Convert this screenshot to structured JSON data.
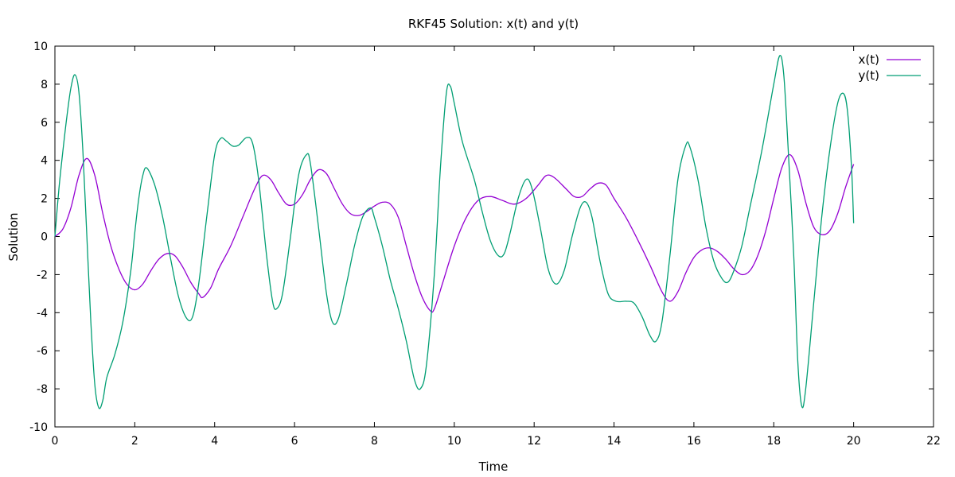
{
  "chart_data": {
    "type": "line",
    "title": "RKF45 Solution: x(t) and y(t)",
    "xlabel": "Time",
    "ylabel": "Solution",
    "xlim": [
      0,
      22
    ],
    "ylim": [
      -10,
      10
    ],
    "xticks": [
      0,
      2,
      4,
      6,
      8,
      10,
      12,
      14,
      16,
      18,
      20,
      22
    ],
    "yticks": [
      -10,
      -8,
      -6,
      -4,
      -2,
      0,
      2,
      4,
      6,
      8,
      10
    ],
    "grid": false,
    "legend_position": "top-right",
    "series": [
      {
        "name": "x(t)",
        "color": "#9400d3",
        "points": [
          [
            0.0,
            0.0
          ],
          [
            0.2,
            0.4
          ],
          [
            0.4,
            1.5
          ],
          [
            0.6,
            3.2
          ],
          [
            0.8,
            4.1
          ],
          [
            1.0,
            3.2
          ],
          [
            1.2,
            1.2
          ],
          [
            1.4,
            -0.5
          ],
          [
            1.6,
            -1.7
          ],
          [
            1.8,
            -2.5
          ],
          [
            2.0,
            -2.8
          ],
          [
            2.2,
            -2.5
          ],
          [
            2.4,
            -1.8
          ],
          [
            2.6,
            -1.2
          ],
          [
            2.8,
            -0.9
          ],
          [
            3.0,
            -1.0
          ],
          [
            3.2,
            -1.6
          ],
          [
            3.4,
            -2.4
          ],
          [
            3.6,
            -3.0
          ],
          [
            3.7,
            -3.2
          ],
          [
            3.9,
            -2.7
          ],
          [
            4.1,
            -1.7
          ],
          [
            4.4,
            -0.5
          ],
          [
            4.7,
            1.0
          ],
          [
            5.0,
            2.5
          ],
          [
            5.2,
            3.2
          ],
          [
            5.4,
            3.0
          ],
          [
            5.6,
            2.3
          ],
          [
            5.8,
            1.7
          ],
          [
            6.0,
            1.7
          ],
          [
            6.2,
            2.2
          ],
          [
            6.4,
            3.0
          ],
          [
            6.6,
            3.5
          ],
          [
            6.8,
            3.3
          ],
          [
            7.0,
            2.5
          ],
          [
            7.2,
            1.7
          ],
          [
            7.4,
            1.2
          ],
          [
            7.6,
            1.1
          ],
          [
            7.8,
            1.3
          ],
          [
            8.0,
            1.6
          ],
          [
            8.2,
            1.8
          ],
          [
            8.4,
            1.7
          ],
          [
            8.6,
            1.0
          ],
          [
            8.8,
            -0.5
          ],
          [
            9.0,
            -2.0
          ],
          [
            9.2,
            -3.2
          ],
          [
            9.4,
            -3.9
          ],
          [
            9.5,
            -3.8
          ],
          [
            9.7,
            -2.5
          ],
          [
            10.0,
            -0.5
          ],
          [
            10.3,
            1.0
          ],
          [
            10.6,
            1.9
          ],
          [
            10.9,
            2.1
          ],
          [
            11.2,
            1.9
          ],
          [
            11.5,
            1.7
          ],
          [
            11.8,
            2.0
          ],
          [
            12.1,
            2.7
          ],
          [
            12.3,
            3.2
          ],
          [
            12.5,
            3.1
          ],
          [
            12.8,
            2.5
          ],
          [
            13.0,
            2.1
          ],
          [
            13.2,
            2.1
          ],
          [
            13.4,
            2.5
          ],
          [
            13.6,
            2.8
          ],
          [
            13.8,
            2.7
          ],
          [
            14.0,
            2.0
          ],
          [
            14.3,
            1.0
          ],
          [
            14.6,
            -0.2
          ],
          [
            14.9,
            -1.5
          ],
          [
            15.2,
            -2.9
          ],
          [
            15.4,
            -3.4
          ],
          [
            15.6,
            -2.9
          ],
          [
            15.8,
            -1.9
          ],
          [
            16.0,
            -1.1
          ],
          [
            16.2,
            -0.7
          ],
          [
            16.4,
            -0.6
          ],
          [
            16.6,
            -0.8
          ],
          [
            16.8,
            -1.2
          ],
          [
            17.0,
            -1.7
          ],
          [
            17.2,
            -2.0
          ],
          [
            17.4,
            -1.8
          ],
          [
            17.6,
            -1.0
          ],
          [
            17.8,
            0.3
          ],
          [
            18.0,
            2.0
          ],
          [
            18.2,
            3.6
          ],
          [
            18.4,
            4.3
          ],
          [
            18.6,
            3.5
          ],
          [
            18.8,
            1.8
          ],
          [
            19.0,
            0.5
          ],
          [
            19.2,
            0.1
          ],
          [
            19.4,
            0.3
          ],
          [
            19.6,
            1.2
          ],
          [
            19.8,
            2.6
          ],
          [
            20.0,
            3.8
          ]
        ]
      },
      {
        "name": "y(t)",
        "color": "#009e73",
        "points": [
          [
            0.0,
            0.0
          ],
          [
            0.1,
            2.5
          ],
          [
            0.2,
            4.5
          ],
          [
            0.3,
            6.3
          ],
          [
            0.4,
            7.8
          ],
          [
            0.5,
            8.5
          ],
          [
            0.6,
            7.6
          ],
          [
            0.7,
            4.5
          ],
          [
            0.8,
            0.0
          ],
          [
            0.9,
            -4.5
          ],
          [
            1.0,
            -7.8
          ],
          [
            1.1,
            -9.0
          ],
          [
            1.2,
            -8.6
          ],
          [
            1.3,
            -7.4
          ],
          [
            1.5,
            -6.2
          ],
          [
            1.7,
            -4.5
          ],
          [
            1.9,
            -1.8
          ],
          [
            2.0,
            0.2
          ],
          [
            2.1,
            2.0
          ],
          [
            2.2,
            3.2
          ],
          [
            2.3,
            3.6
          ],
          [
            2.5,
            2.7
          ],
          [
            2.7,
            1.0
          ],
          [
            2.9,
            -1.2
          ],
          [
            3.1,
            -3.2
          ],
          [
            3.3,
            -4.3
          ],
          [
            3.45,
            -4.2
          ],
          [
            3.6,
            -2.5
          ],
          [
            3.8,
            1.0
          ],
          [
            4.0,
            4.3
          ],
          [
            4.15,
            5.15
          ],
          [
            4.3,
            5.0
          ],
          [
            4.45,
            4.75
          ],
          [
            4.6,
            4.8
          ],
          [
            4.8,
            5.2
          ],
          [
            4.95,
            4.9
          ],
          [
            5.1,
            3.0
          ],
          [
            5.3,
            -1.0
          ],
          [
            5.45,
            -3.4
          ],
          [
            5.55,
            -3.8
          ],
          [
            5.7,
            -3.0
          ],
          [
            5.9,
            0.0
          ],
          [
            6.1,
            3.2
          ],
          [
            6.3,
            4.3
          ],
          [
            6.4,
            3.8
          ],
          [
            6.6,
            0.5
          ],
          [
            6.8,
            -3.0
          ],
          [
            6.95,
            -4.5
          ],
          [
            7.1,
            -4.3
          ],
          [
            7.3,
            -2.5
          ],
          [
            7.5,
            -0.5
          ],
          [
            7.7,
            1.0
          ],
          [
            7.9,
            1.5
          ],
          [
            8.0,
            1.0
          ],
          [
            8.2,
            -0.5
          ],
          [
            8.4,
            -2.3
          ],
          [
            8.6,
            -3.8
          ],
          [
            8.8,
            -5.5
          ],
          [
            9.0,
            -7.5
          ],
          [
            9.15,
            -8.0
          ],
          [
            9.3,
            -6.8
          ],
          [
            9.5,
            -2.0
          ],
          [
            9.65,
            3.5
          ],
          [
            9.8,
            7.5
          ],
          [
            9.9,
            7.9
          ],
          [
            10.0,
            7.0
          ],
          [
            10.2,
            5.0
          ],
          [
            10.5,
            3.0
          ],
          [
            10.7,
            1.3
          ],
          [
            10.9,
            -0.2
          ],
          [
            11.1,
            -1.0
          ],
          [
            11.25,
            -0.9
          ],
          [
            11.4,
            0.2
          ],
          [
            11.6,
            2.0
          ],
          [
            11.8,
            3.0
          ],
          [
            11.95,
            2.5
          ],
          [
            12.15,
            0.5
          ],
          [
            12.35,
            -1.7
          ],
          [
            12.55,
            -2.5
          ],
          [
            12.75,
            -1.8
          ],
          [
            12.95,
            0.0
          ],
          [
            13.15,
            1.5
          ],
          [
            13.3,
            1.8
          ],
          [
            13.45,
            1.0
          ],
          [
            13.65,
            -1.3
          ],
          [
            13.85,
            -3.0
          ],
          [
            14.05,
            -3.4
          ],
          [
            14.3,
            -3.4
          ],
          [
            14.5,
            -3.5
          ],
          [
            14.7,
            -4.2
          ],
          [
            14.9,
            -5.2
          ],
          [
            15.05,
            -5.5
          ],
          [
            15.2,
            -4.5
          ],
          [
            15.4,
            -1.0
          ],
          [
            15.6,
            3.0
          ],
          [
            15.8,
            4.8
          ],
          [
            15.9,
            4.7
          ],
          [
            16.1,
            3.0
          ],
          [
            16.3,
            0.5
          ],
          [
            16.5,
            -1.3
          ],
          [
            16.7,
            -2.2
          ],
          [
            16.85,
            -2.4
          ],
          [
            17.0,
            -1.8
          ],
          [
            17.2,
            -0.5
          ],
          [
            17.4,
            1.5
          ],
          [
            17.7,
            4.5
          ],
          [
            18.0,
            8.0
          ],
          [
            18.15,
            9.5
          ],
          [
            18.25,
            8.5
          ],
          [
            18.35,
            5.0
          ],
          [
            18.5,
            -1.0
          ],
          [
            18.6,
            -6.5
          ],
          [
            18.7,
            -8.9
          ],
          [
            18.8,
            -8.0
          ],
          [
            19.0,
            -3.5
          ],
          [
            19.2,
            1.0
          ],
          [
            19.4,
            4.5
          ],
          [
            19.6,
            7.0
          ],
          [
            19.75,
            7.5
          ],
          [
            19.85,
            6.5
          ],
          [
            19.95,
            3.5
          ],
          [
            20.0,
            0.7
          ]
        ]
      }
    ]
  }
}
